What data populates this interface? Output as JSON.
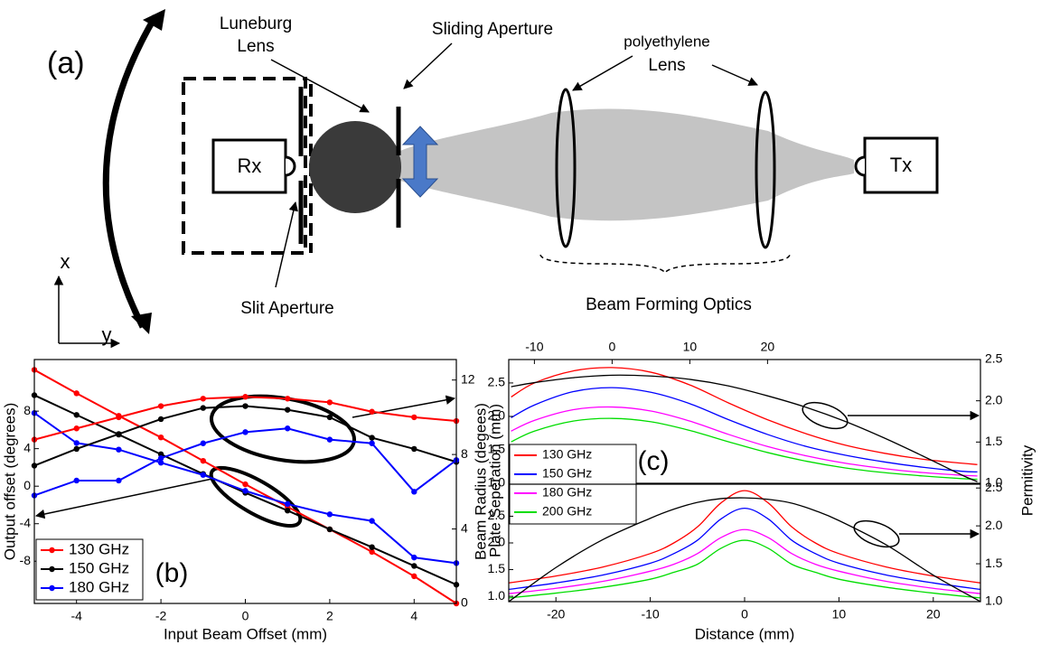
{
  "diagram": {
    "panel_label": "(a)",
    "luneburg_lens": [
      "Luneburg",
      "Lens"
    ],
    "sliding_aperture": "Sliding Aperture",
    "polyethylene_lens": [
      "polyethylene",
      "Lens"
    ],
    "rx": "Rx",
    "tx": "Tx",
    "slit_aperture": "Slit Aperture",
    "beam_forming_optics": "Beam Forming Optics",
    "x_axis": "x",
    "y_axis": "y"
  },
  "chart_data": [
    {
      "type": "line",
      "panel_label": "(b)",
      "xlabel": "Input Beam Offset (mm)",
      "ylabel": "Output offset (degrees)",
      "y2label": "Beam Radius (degees)",
      "x": [
        -5,
        -4,
        -3,
        -2,
        -1,
        0,
        1,
        2,
        3,
        4,
        5
      ],
      "xlim": [
        -5,
        5
      ],
      "xticks": [
        -4,
        -2,
        0,
        2,
        4
      ],
      "ylim": [
        -12.5,
        13.5
      ],
      "yticks": [
        -8,
        -4,
        0,
        4,
        8
      ],
      "y2lim": [
        0,
        13.1
      ],
      "y2ticks": [
        0,
        4,
        8,
        12
      ],
      "legend": "lower left",
      "series": [
        {
          "name": "130 GHz",
          "color": "#ff0000",
          "values": [
            12.4,
            9.9,
            7.5,
            5.2,
            2.7,
            0.2,
            -2.2,
            -4.6,
            -7.0,
            -9.6,
            -12.5
          ]
        },
        {
          "name": "150 GHz",
          "color": "#000000",
          "values": [
            9.7,
            7.6,
            5.5,
            3.4,
            1.3,
            -0.7,
            -2.6,
            -4.6,
            -6.5,
            -8.5,
            -10.5
          ]
        },
        {
          "name": "180 GHz",
          "color": "#0000ff",
          "values": [
            7.8,
            4.6,
            3.9,
            2.5,
            1.2,
            -0.5,
            -1.9,
            -3.0,
            -3.7,
            -7.6,
            -8.2
          ]
        },
        {
          "color": "#ff0000",
          "axis": "y2",
          "values": [
            8.8,
            9.4,
            10.0,
            10.6,
            11.0,
            11.1,
            11.0,
            10.8,
            10.3,
            10.0,
            9.8
          ]
        },
        {
          "color": "#000000",
          "axis": "y2",
          "values": [
            7.4,
            8.3,
            9.1,
            9.9,
            10.5,
            10.6,
            10.4,
            10.0,
            8.9,
            8.3,
            7.6
          ]
        },
        {
          "color": "#0000ff",
          "axis": "y2",
          "values": [
            5.8,
            6.6,
            6.6,
            7.8,
            8.6,
            9.2,
            9.4,
            8.8,
            8.6,
            6.0,
            7.7
          ]
        }
      ]
    },
    {
      "type": "line",
      "panel_label": "(c)",
      "ylabel": "Plate Seperation (mm)",
      "y2label": "Permitivity",
      "legend": "lower left",
      "x": [
        -13,
        -10,
        -5,
        0,
        5,
        10,
        15,
        20,
        25,
        30,
        35,
        40,
        45,
        47
      ],
      "xlim": [
        -13.3,
        47.4
      ],
      "xticks": [
        -10,
        0,
        10,
        20
      ],
      "ylim": [
        1.0,
        2.85
      ],
      "yticks": [
        {
          "value": 1,
          "label": "1.0"
        },
        1.5,
        {
          "value": 2,
          "label": "2.0"
        },
        2.5
      ],
      "y2lim": [
        1.0,
        2.5
      ],
      "y2ticks": [
        {
          "value": 1,
          "label": "1.0"
        },
        1.5,
        {
          "value": 2,
          "label": "2.0"
        },
        2.5
      ],
      "series": [
        {
          "name": "130 GHz",
          "color": "#ff0000",
          "values": [
            2.29,
            2.5,
            2.68,
            2.73,
            2.66,
            2.47,
            2.2,
            1.95,
            1.74,
            1.57,
            1.45,
            1.36,
            1.3,
            1.28
          ]
        },
        {
          "name": "150 GHz",
          "color": "#0000ff",
          "values": [
            1.98,
            2.17,
            2.37,
            2.43,
            2.36,
            2.19,
            1.95,
            1.73,
            1.55,
            1.42,
            1.32,
            1.24,
            1.18,
            1.17
          ]
        },
        {
          "name": "180 GHz",
          "color": "#ff00ff",
          "values": [
            1.78,
            1.94,
            2.1,
            2.14,
            2.08,
            1.93,
            1.73,
            1.55,
            1.41,
            1.3,
            1.22,
            1.16,
            1.12,
            1.11
          ]
        },
        {
          "name": "200 GHz",
          "color": "#00dd00",
          "values": [
            1.62,
            1.78,
            1.93,
            1.97,
            1.92,
            1.79,
            1.62,
            1.46,
            1.33,
            1.23,
            1.16,
            1.11,
            1.07,
            1.06
          ]
        },
        {
          "color": "#000000",
          "axis": "y2",
          "values": [
            2.17,
            2.22,
            2.28,
            2.31,
            2.3,
            2.26,
            2.18,
            2.06,
            1.92,
            1.75,
            1.55,
            1.33,
            1.1,
            1.02
          ]
        }
      ]
    },
    {
      "type": "line",
      "xlabel": "Distance (mm)",
      "x": [
        -25,
        -20,
        -15,
        -10,
        -7.5,
        -5,
        -2.5,
        0,
        2.5,
        5,
        7.5,
        10,
        15,
        20,
        25
      ],
      "xlim": [
        -25,
        25
      ],
      "xticks": [
        -20,
        -10,
        0,
        10,
        20
      ],
      "ylim": [
        0.9,
        3.1
      ],
      "yticks": [
        {
          "value": 1,
          "label": "1.0"
        },
        1.5,
        {
          "value": 2,
          "label": "2.0"
        },
        2.5
      ],
      "y2lim": [
        1.0,
        2.55
      ],
      "y2ticks": [
        {
          "value": 1,
          "label": "1.0"
        },
        1.5,
        {
          "value": 2,
          "label": "2.0"
        },
        2.5
      ],
      "series": [
        {
          "color": "#ff0000",
          "values": [
            1.25,
            1.38,
            1.55,
            1.8,
            2.0,
            2.3,
            2.75,
            2.98,
            2.75,
            2.3,
            2.0,
            1.8,
            1.55,
            1.38,
            1.25
          ]
        },
        {
          "color": "#0000ff",
          "values": [
            1.13,
            1.25,
            1.4,
            1.62,
            1.8,
            2.05,
            2.45,
            2.65,
            2.45,
            2.05,
            1.8,
            1.62,
            1.4,
            1.25,
            1.13
          ]
        },
        {
          "color": "#ff00ff",
          "values": [
            1.05,
            1.15,
            1.28,
            1.47,
            1.6,
            1.8,
            2.1,
            2.25,
            2.1,
            1.8,
            1.6,
            1.47,
            1.28,
            1.15,
            1.05
          ]
        },
        {
          "color": "#00dd00",
          "values": [
            0.97,
            1.06,
            1.17,
            1.32,
            1.45,
            1.6,
            1.9,
            2.05,
            1.9,
            1.6,
            1.45,
            1.32,
            1.17,
            1.06,
            0.97
          ]
        },
        {
          "color": "#000000",
          "axis": "y2",
          "values": [
            1.0,
            1.45,
            1.82,
            2.1,
            2.22,
            2.31,
            2.36,
            2.37,
            2.35,
            2.3,
            2.2,
            2.07,
            1.75,
            1.35,
            1.0
          ]
        }
      ]
    }
  ]
}
